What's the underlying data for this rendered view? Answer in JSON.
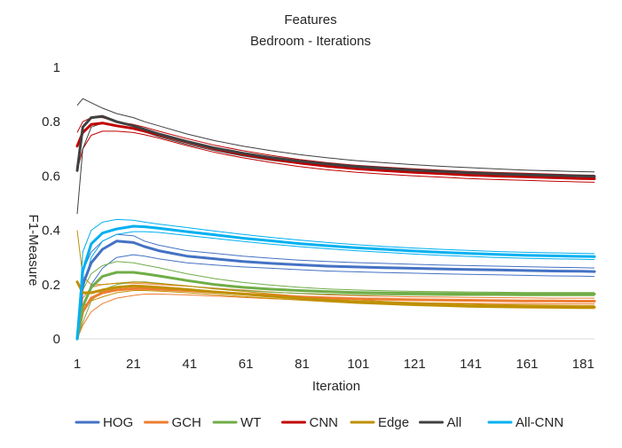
{
  "chart_data": {
    "type": "line",
    "title": "Features",
    "subtitle": "Bedroom - Iterations",
    "xlabel": "Iteration",
    "ylabel": "F1-Measure",
    "xlim": [
      1,
      185
    ],
    "ylim": [
      0,
      1
    ],
    "x_ticks": [
      "1",
      "21",
      "41",
      "61",
      "81",
      "101",
      "121",
      "141",
      "161",
      "181"
    ],
    "y_ticks": [
      "0",
      "0.2",
      "0.4",
      "0.6",
      "0.8",
      "1"
    ],
    "grid": false,
    "legend_position": "bottom",
    "series": [
      {
        "name": "HOG",
        "color": "#4472C4",
        "x": [
          1,
          3,
          6,
          10,
          15,
          21,
          25,
          30,
          40,
          50,
          60,
          70,
          80,
          90,
          100,
          110,
          120,
          130,
          140,
          150,
          160,
          170,
          180,
          185
        ],
        "values": [
          0.0,
          0.2,
          0.28,
          0.33,
          0.36,
          0.355,
          0.34,
          0.325,
          0.305,
          0.295,
          0.285,
          0.278,
          0.273,
          0.268,
          0.265,
          0.262,
          0.26,
          0.258,
          0.256,
          0.254,
          0.252,
          0.25,
          0.249,
          0.248
        ],
        "band_low": [
          0.0,
          0.12,
          0.2,
          0.26,
          0.3,
          0.31,
          0.305,
          0.295,
          0.28,
          0.272,
          0.265,
          0.26,
          0.255,
          0.25,
          0.247,
          0.244,
          0.242,
          0.24,
          0.238,
          0.236,
          0.234,
          0.232,
          0.231,
          0.23
        ],
        "band_high": [
          0.0,
          0.25,
          0.32,
          0.36,
          0.385,
          0.38,
          0.36,
          0.345,
          0.325,
          0.315,
          0.305,
          0.297,
          0.29,
          0.285,
          0.281,
          0.278,
          0.275,
          0.272,
          0.27,
          0.268,
          0.266,
          0.264,
          0.262,
          0.261
        ]
      },
      {
        "name": "GCH",
        "color": "#ED7D31",
        "x": [
          1,
          3,
          6,
          10,
          15,
          21,
          25,
          30,
          40,
          50,
          60,
          70,
          80,
          90,
          100,
          110,
          120,
          130,
          140,
          150,
          160,
          170,
          180,
          185
        ],
        "values": [
          0.0,
          0.1,
          0.15,
          0.17,
          0.18,
          0.185,
          0.185,
          0.183,
          0.178,
          0.172,
          0.166,
          0.16,
          0.155,
          0.151,
          0.148,
          0.146,
          0.144,
          0.143,
          0.142,
          0.141,
          0.14,
          0.14,
          0.139,
          0.139
        ],
        "band_low": [
          0.0,
          0.05,
          0.1,
          0.13,
          0.15,
          0.16,
          0.165,
          0.165,
          0.162,
          0.158,
          0.153,
          0.148,
          0.144,
          0.14,
          0.137,
          0.135,
          0.133,
          0.132,
          0.131,
          0.13,
          0.13,
          0.129,
          0.129,
          0.129
        ],
        "band_high": [
          0.0,
          0.15,
          0.19,
          0.2,
          0.205,
          0.205,
          0.203,
          0.2,
          0.194,
          0.187,
          0.18,
          0.173,
          0.167,
          0.162,
          0.159,
          0.157,
          0.155,
          0.154,
          0.153,
          0.152,
          0.151,
          0.15,
          0.15,
          0.15
        ]
      },
      {
        "name": "WT",
        "color": "#70AD47",
        "x": [
          1,
          3,
          6,
          10,
          15,
          21,
          25,
          30,
          40,
          50,
          60,
          70,
          80,
          90,
          100,
          110,
          120,
          130,
          140,
          150,
          160,
          170,
          180,
          185
        ],
        "values": [
          0.0,
          0.12,
          0.19,
          0.23,
          0.245,
          0.245,
          0.24,
          0.232,
          0.215,
          0.2,
          0.19,
          0.183,
          0.178,
          0.174,
          0.171,
          0.169,
          0.168,
          0.167,
          0.166,
          0.166,
          0.165,
          0.165,
          0.165,
          0.165
        ],
        "band_low": [
          0.0,
          0.06,
          0.14,
          0.18,
          0.2,
          0.21,
          0.21,
          0.205,
          0.195,
          0.185,
          0.178,
          0.172,
          0.168,
          0.165,
          0.163,
          0.162,
          0.161,
          0.16,
          0.16,
          0.16,
          0.159,
          0.159,
          0.159,
          0.159
        ],
        "band_high": [
          0.0,
          0.18,
          0.24,
          0.27,
          0.285,
          0.28,
          0.272,
          0.262,
          0.24,
          0.222,
          0.208,
          0.198,
          0.19,
          0.184,
          0.18,
          0.177,
          0.175,
          0.174,
          0.173,
          0.172,
          0.171,
          0.171,
          0.171,
          0.171
        ]
      },
      {
        "name": "CNN",
        "color": "#C00000",
        "x": [
          1,
          3,
          6,
          10,
          15,
          21,
          25,
          30,
          40,
          50,
          60,
          70,
          80,
          90,
          100,
          110,
          120,
          130,
          140,
          150,
          160,
          170,
          180,
          185
        ],
        "values": [
          0.71,
          0.76,
          0.79,
          0.795,
          0.785,
          0.775,
          0.765,
          0.752,
          0.725,
          0.7,
          0.68,
          0.663,
          0.648,
          0.636,
          0.627,
          0.62,
          0.614,
          0.609,
          0.604,
          0.6,
          0.597,
          0.594,
          0.591,
          0.59
        ],
        "band_low": [
          0.62,
          0.7,
          0.75,
          0.765,
          0.765,
          0.76,
          0.752,
          0.74,
          0.712,
          0.687,
          0.667,
          0.65,
          0.635,
          0.623,
          0.614,
          0.607,
          0.601,
          0.596,
          0.591,
          0.587,
          0.584,
          0.581,
          0.578,
          0.577
        ],
        "band_high": [
          0.76,
          0.8,
          0.815,
          0.815,
          0.8,
          0.79,
          0.78,
          0.765,
          0.738,
          0.713,
          0.693,
          0.676,
          0.661,
          0.649,
          0.64,
          0.633,
          0.627,
          0.622,
          0.617,
          0.613,
          0.61,
          0.607,
          0.604,
          0.603
        ]
      },
      {
        "name": "Edge",
        "color": "#BF9000",
        "x": [
          1,
          3,
          6,
          10,
          15,
          21,
          25,
          30,
          40,
          50,
          60,
          70,
          80,
          90,
          100,
          110,
          120,
          130,
          140,
          150,
          160,
          170,
          180,
          185
        ],
        "values": [
          0.21,
          0.17,
          0.17,
          0.18,
          0.19,
          0.195,
          0.193,
          0.19,
          0.182,
          0.173,
          0.165,
          0.157,
          0.15,
          0.143,
          0.137,
          0.132,
          0.128,
          0.125,
          0.122,
          0.12,
          0.119,
          0.118,
          0.117,
          0.117
        ],
        "band_low": [
          0.0,
          0.12,
          0.14,
          0.155,
          0.17,
          0.178,
          0.178,
          0.176,
          0.17,
          0.163,
          0.156,
          0.149,
          0.143,
          0.137,
          0.131,
          0.127,
          0.123,
          0.12,
          0.117,
          0.115,
          0.114,
          0.113,
          0.112,
          0.112
        ],
        "band_high": [
          0.4,
          0.23,
          0.2,
          0.2,
          0.205,
          0.21,
          0.208,
          0.204,
          0.195,
          0.184,
          0.175,
          0.166,
          0.158,
          0.15,
          0.144,
          0.138,
          0.134,
          0.131,
          0.128,
          0.126,
          0.125,
          0.124,
          0.123,
          0.123
        ]
      },
      {
        "name": "All",
        "color": "#404040",
        "x": [
          1,
          3,
          6,
          10,
          15,
          21,
          25,
          30,
          40,
          50,
          60,
          70,
          80,
          90,
          100,
          110,
          120,
          130,
          140,
          150,
          160,
          170,
          180,
          185
        ],
        "values": [
          0.62,
          0.78,
          0.815,
          0.82,
          0.8,
          0.785,
          0.772,
          0.755,
          0.727,
          0.703,
          0.684,
          0.668,
          0.655,
          0.644,
          0.635,
          0.628,
          0.622,
          0.617,
          0.612,
          0.608,
          0.605,
          0.602,
          0.6,
          0.599
        ],
        "band_low": [
          0.46,
          0.7,
          0.78,
          0.795,
          0.785,
          0.775,
          0.762,
          0.745,
          0.717,
          0.693,
          0.674,
          0.658,
          0.645,
          0.634,
          0.625,
          0.618,
          0.612,
          0.607,
          0.602,
          0.598,
          0.595,
          0.592,
          0.59,
          0.589
        ],
        "band_high": [
          0.86,
          0.885,
          0.87,
          0.85,
          0.83,
          0.815,
          0.8,
          0.785,
          0.755,
          0.73,
          0.71,
          0.693,
          0.679,
          0.667,
          0.657,
          0.649,
          0.642,
          0.636,
          0.631,
          0.626,
          0.622,
          0.619,
          0.616,
          0.615
        ]
      },
      {
        "name": "All-CNN",
        "color": "#00B0F0",
        "x": [
          1,
          3,
          6,
          10,
          15,
          21,
          25,
          30,
          40,
          50,
          60,
          70,
          80,
          90,
          100,
          110,
          120,
          130,
          140,
          150,
          160,
          170,
          180,
          185
        ],
        "values": [
          0.0,
          0.25,
          0.35,
          0.39,
          0.405,
          0.415,
          0.413,
          0.408,
          0.395,
          0.383,
          0.371,
          0.361,
          0.351,
          0.343,
          0.336,
          0.33,
          0.324,
          0.319,
          0.315,
          0.311,
          0.308,
          0.306,
          0.304,
          0.303
        ],
        "band_low": [
          0.0,
          0.18,
          0.3,
          0.36,
          0.385,
          0.395,
          0.395,
          0.392,
          0.381,
          0.37,
          0.359,
          0.349,
          0.34,
          0.332,
          0.325,
          0.319,
          0.313,
          0.308,
          0.304,
          0.3,
          0.297,
          0.295,
          0.293,
          0.292
        ],
        "band_high": [
          0.0,
          0.32,
          0.4,
          0.43,
          0.44,
          0.437,
          0.43,
          0.423,
          0.41,
          0.397,
          0.385,
          0.374,
          0.364,
          0.355,
          0.347,
          0.341,
          0.335,
          0.33,
          0.326,
          0.322,
          0.319,
          0.317,
          0.315,
          0.314
        ]
      }
    ]
  }
}
